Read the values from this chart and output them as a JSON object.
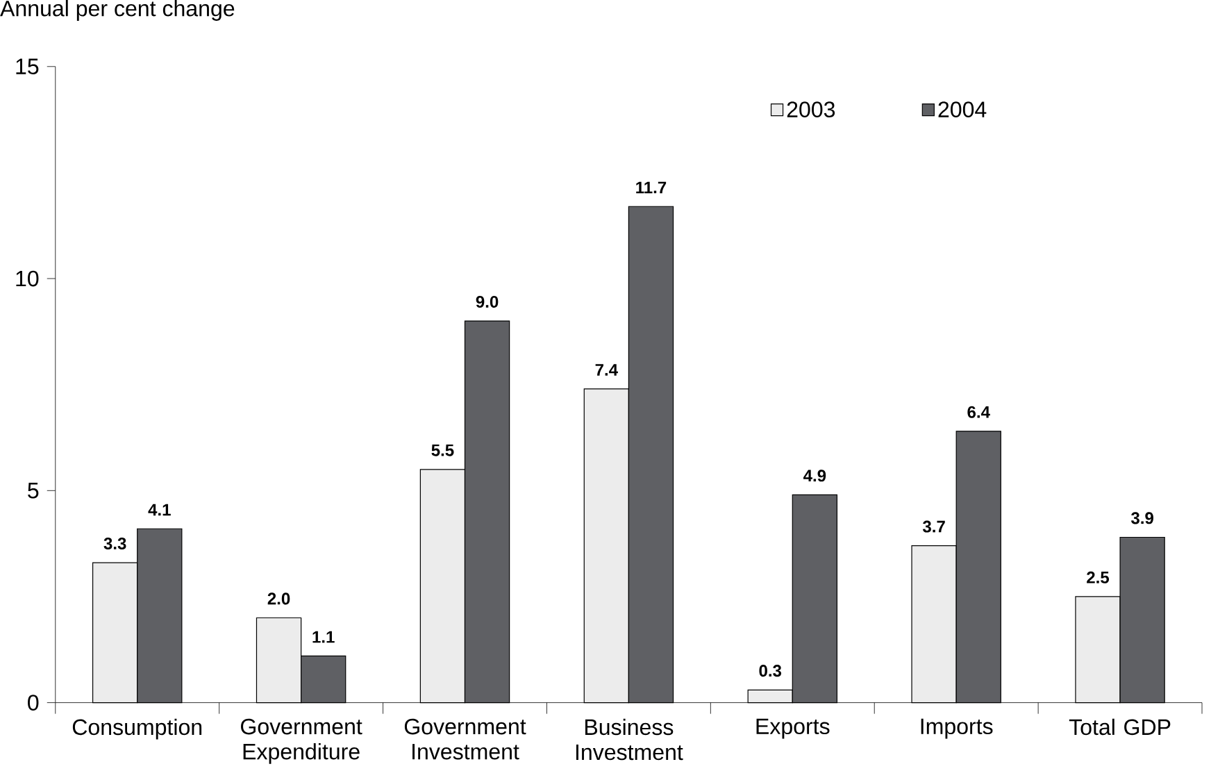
{
  "chart_data": {
    "type": "bar",
    "ylabel": "Annual per cent change",
    "categories": [
      "Consumption",
      "Government Expenditure",
      "Government Investment",
      "Business Investment",
      "Exports",
      "Imports",
      "Total GDP"
    ],
    "series": [
      {
        "name": "2003",
        "color": "#ececec",
        "values": [
          3.3,
          2.0,
          5.5,
          7.4,
          0.3,
          3.7,
          2.5
        ],
        "value_labels": [
          "3.3",
          "2.0",
          "5.5",
          "7.4",
          "0.3",
          "3.7",
          "2.5"
        ]
      },
      {
        "name": "2004",
        "color": "#5f6064",
        "values": [
          4.1,
          1.1,
          9.0,
          11.7,
          4.9,
          6.4,
          3.9
        ],
        "value_labels": [
          "4.1",
          "1.1",
          "9.0",
          "11.7",
          "4.9",
          "6.4",
          "3.9"
        ]
      }
    ],
    "ylim": [
      0,
      15
    ],
    "yticks": [
      0,
      5,
      10,
      15
    ],
    "legend": "top right",
    "grid": false
  }
}
